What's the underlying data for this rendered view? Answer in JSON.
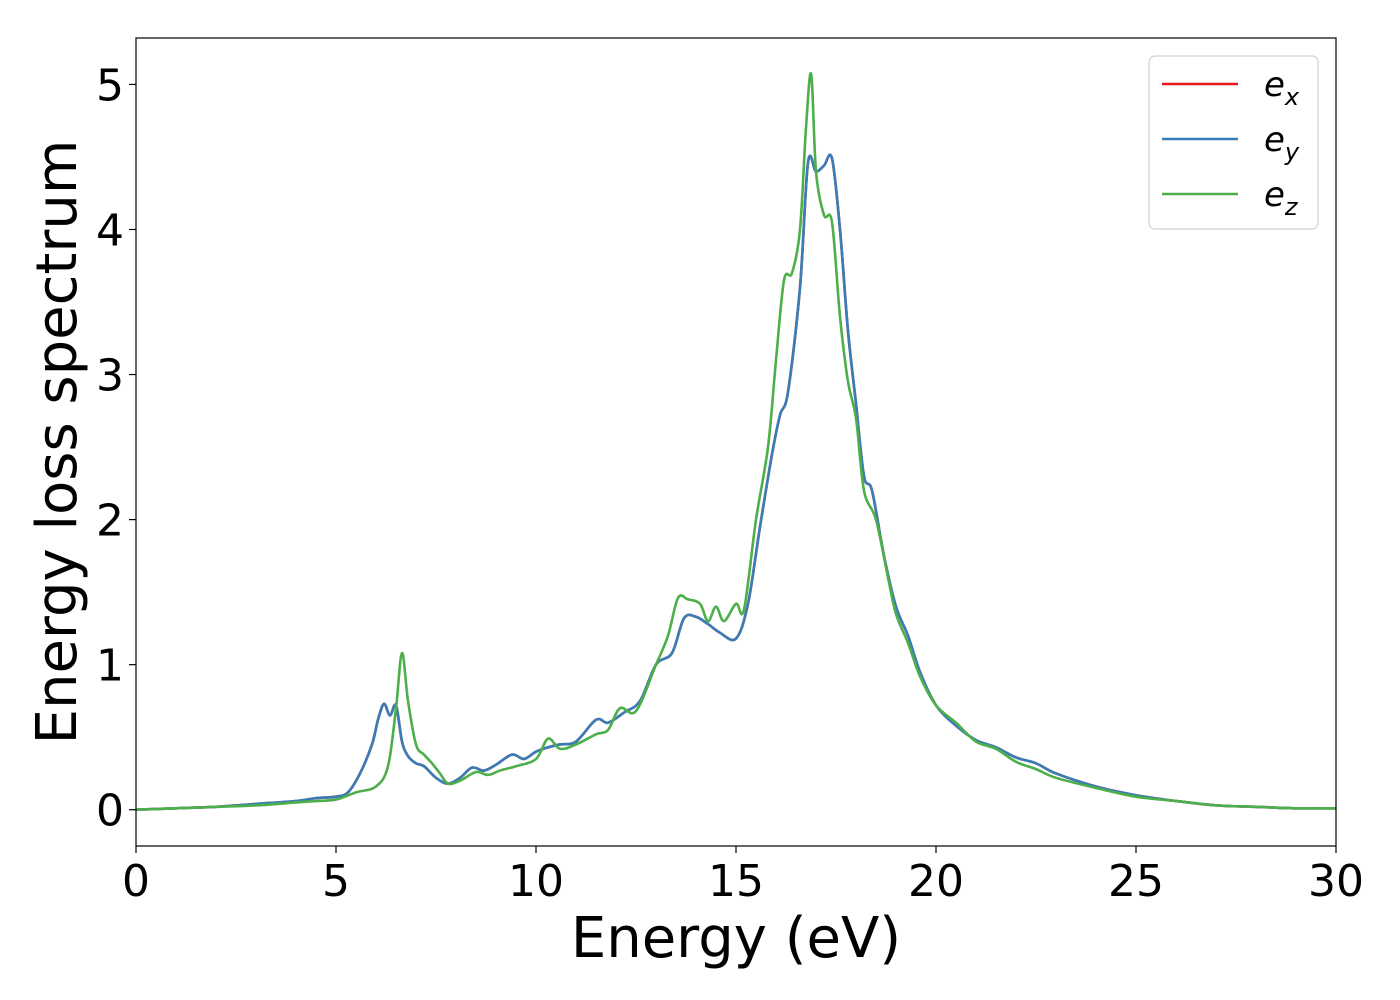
{
  "chart_data": {
    "type": "line",
    "title": "",
    "xlabel": "Energy (eV)",
    "ylabel": "Energy loss spectrum",
    "xlim": [
      0,
      30
    ],
    "ylim": [
      -0.25,
      5.32
    ],
    "xticks": [
      "0",
      "5",
      "10",
      "15",
      "20",
      "25",
      "30"
    ],
    "yticks": [
      "0",
      "1",
      "2",
      "3",
      "4",
      "5"
    ],
    "grid": false,
    "legend_position": "top-right",
    "series": [
      {
        "name": "e_x",
        "label_base": "e",
        "label_sub": "x",
        "color": "#e41a1c",
        "x": [
          0,
          1,
          2,
          3,
          4,
          4.5,
          5,
          5.3,
          5.6,
          5.9,
          6.05,
          6.2,
          6.35,
          6.5,
          6.65,
          6.8,
          7.0,
          7.2,
          7.5,
          7.8,
          8.1,
          8.4,
          8.7,
          9.0,
          9.4,
          9.7,
          10.0,
          10.3,
          10.6,
          11.0,
          11.5,
          11.8,
          12.2,
          12.6,
          13.0,
          13.4,
          13.7,
          14.0,
          14.3,
          14.6,
          15.0,
          15.3,
          15.6,
          15.9,
          16.1,
          16.3,
          16.6,
          16.8,
          17.0,
          17.2,
          17.4,
          17.6,
          17.8,
          18.0,
          18.2,
          18.4,
          18.7,
          19.0,
          19.3,
          19.6,
          20.0,
          20.5,
          21.0,
          21.5,
          22.0,
          22.5,
          23.0,
          24.0,
          25.0,
          26.0,
          27.0,
          28.0,
          29.0,
          30.0
        ],
        "y": [
          0.0,
          0.01,
          0.02,
          0.04,
          0.06,
          0.08,
          0.09,
          0.12,
          0.25,
          0.45,
          0.62,
          0.73,
          0.65,
          0.72,
          0.47,
          0.37,
          0.32,
          0.3,
          0.22,
          0.18,
          0.22,
          0.29,
          0.27,
          0.31,
          0.38,
          0.35,
          0.4,
          0.43,
          0.45,
          0.47,
          0.62,
          0.6,
          0.67,
          0.75,
          1.0,
          1.08,
          1.32,
          1.33,
          1.28,
          1.22,
          1.18,
          1.42,
          1.95,
          2.45,
          2.72,
          2.88,
          3.6,
          4.46,
          4.4,
          4.44,
          4.49,
          4.0,
          3.3,
          2.8,
          2.3,
          2.2,
          1.75,
          1.4,
          1.2,
          0.95,
          0.72,
          0.58,
          0.48,
          0.43,
          0.36,
          0.32,
          0.25,
          0.16,
          0.1,
          0.06,
          0.03,
          0.02,
          0.01,
          0.01
        ]
      },
      {
        "name": "e_y",
        "label_base": "e",
        "label_sub": "y",
        "color": "#377eb8",
        "x": [
          0,
          1,
          2,
          3,
          4,
          4.5,
          5,
          5.3,
          5.6,
          5.9,
          6.05,
          6.2,
          6.35,
          6.5,
          6.65,
          6.8,
          7.0,
          7.2,
          7.5,
          7.8,
          8.1,
          8.4,
          8.7,
          9.0,
          9.4,
          9.7,
          10.0,
          10.3,
          10.6,
          11.0,
          11.5,
          11.8,
          12.2,
          12.6,
          13.0,
          13.4,
          13.7,
          14.0,
          14.3,
          14.6,
          15.0,
          15.3,
          15.6,
          15.9,
          16.1,
          16.3,
          16.6,
          16.8,
          17.0,
          17.2,
          17.4,
          17.6,
          17.8,
          18.0,
          18.2,
          18.4,
          18.7,
          19.0,
          19.3,
          19.6,
          20.0,
          20.5,
          21.0,
          21.5,
          22.0,
          22.5,
          23.0,
          24.0,
          25.0,
          26.0,
          27.0,
          28.0,
          29.0,
          30.0
        ],
        "y": [
          0.0,
          0.01,
          0.02,
          0.04,
          0.06,
          0.08,
          0.09,
          0.12,
          0.25,
          0.45,
          0.62,
          0.73,
          0.65,
          0.72,
          0.47,
          0.37,
          0.32,
          0.3,
          0.22,
          0.18,
          0.22,
          0.29,
          0.27,
          0.31,
          0.38,
          0.35,
          0.4,
          0.43,
          0.45,
          0.47,
          0.62,
          0.6,
          0.67,
          0.75,
          1.0,
          1.08,
          1.32,
          1.33,
          1.28,
          1.22,
          1.18,
          1.42,
          1.95,
          2.45,
          2.72,
          2.88,
          3.6,
          4.46,
          4.4,
          4.44,
          4.49,
          4.0,
          3.3,
          2.8,
          2.3,
          2.2,
          1.75,
          1.4,
          1.2,
          0.95,
          0.72,
          0.58,
          0.48,
          0.43,
          0.36,
          0.32,
          0.25,
          0.16,
          0.1,
          0.06,
          0.03,
          0.02,
          0.01,
          0.01
        ]
      },
      {
        "name": "e_z",
        "label_base": "e",
        "label_sub": "z",
        "color": "#4daf4a",
        "x": [
          0,
          1,
          2,
          3,
          4,
          4.5,
          5,
          5.5,
          6.0,
          6.3,
          6.5,
          6.65,
          6.8,
          7.0,
          7.2,
          7.4,
          7.6,
          7.8,
          8.1,
          8.5,
          8.8,
          9.1,
          9.5,
          10.0,
          10.3,
          10.6,
          11.0,
          11.5,
          11.8,
          12.1,
          12.5,
          13.0,
          13.3,
          13.55,
          13.8,
          14.1,
          14.3,
          14.5,
          14.7,
          15.0,
          15.2,
          15.5,
          15.8,
          16.0,
          16.2,
          16.4,
          16.6,
          16.75,
          16.88,
          17.0,
          17.2,
          17.4,
          17.6,
          17.8,
          18.0,
          18.2,
          18.5,
          18.8,
          19.0,
          19.3,
          19.6,
          20.0,
          20.5,
          21.0,
          21.5,
          22.0,
          22.5,
          23.0,
          24.0,
          25.0,
          26.0,
          27.0,
          28.0,
          29.0,
          30.0
        ],
        "y": [
          0.0,
          0.01,
          0.02,
          0.03,
          0.05,
          0.06,
          0.07,
          0.12,
          0.16,
          0.3,
          0.7,
          1.08,
          0.75,
          0.45,
          0.38,
          0.32,
          0.25,
          0.18,
          0.2,
          0.26,
          0.24,
          0.27,
          0.3,
          0.35,
          0.49,
          0.42,
          0.45,
          0.52,
          0.55,
          0.7,
          0.68,
          1.0,
          1.2,
          1.46,
          1.45,
          1.42,
          1.3,
          1.4,
          1.3,
          1.42,
          1.38,
          2.0,
          2.5,
          3.1,
          3.65,
          3.7,
          4.0,
          4.7,
          5.07,
          4.4,
          4.1,
          4.05,
          3.4,
          2.95,
          2.7,
          2.2,
          2.0,
          1.6,
          1.35,
          1.15,
          0.92,
          0.72,
          0.6,
          0.47,
          0.42,
          0.33,
          0.28,
          0.22,
          0.15,
          0.09,
          0.06,
          0.03,
          0.02,
          0.01,
          0.01
        ]
      }
    ]
  }
}
